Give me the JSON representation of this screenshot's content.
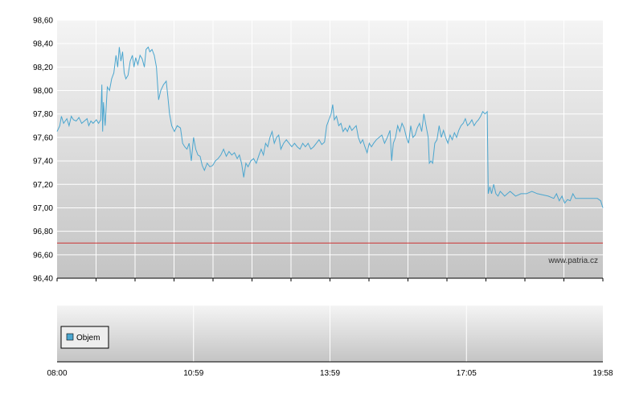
{
  "chart_data": [
    {
      "type": "line",
      "y_ticks": [
        96.4,
        96.6,
        96.8,
        97.0,
        97.2,
        97.4,
        97.6,
        97.8,
        98.0,
        98.2,
        98.4,
        98.6
      ],
      "y_tick_labels": [
        "96,40",
        "96,60",
        "96,80",
        "97,00",
        "97,20",
        "97,40",
        "97,60",
        "97,80",
        "98,00",
        "98,20",
        "98,40",
        "98,60"
      ],
      "ylim": [
        96.4,
        98.6
      ],
      "xlim": [
        0,
        100
      ],
      "grid": true,
      "reference_line": {
        "value": 96.7,
        "color": "#cc3333"
      },
      "watermark": "www.patria.cz",
      "series": [
        {
          "color": "#4ba6cf",
          "points": [
            [
              0.0,
              97.65
            ],
            [
              0.5,
              97.7
            ],
            [
              0.8,
              97.78
            ],
            [
              1.2,
              97.72
            ],
            [
              1.8,
              97.76
            ],
            [
              2.2,
              97.7
            ],
            [
              2.6,
              97.78
            ],
            [
              3.0,
              97.75
            ],
            [
              3.5,
              97.74
            ],
            [
              4.0,
              97.77
            ],
            [
              4.5,
              97.72
            ],
            [
              5.0,
              97.74
            ],
            [
              5.5,
              97.76
            ],
            [
              5.8,
              97.7
            ],
            [
              6.2,
              97.74
            ],
            [
              6.6,
              97.72
            ],
            [
              7.2,
              97.75
            ],
            [
              7.6,
              97.72
            ],
            [
              8.0,
              97.75
            ],
            [
              8.2,
              98.05
            ],
            [
              8.35,
              97.65
            ],
            [
              8.5,
              97.9
            ],
            [
              8.8,
              97.7
            ],
            [
              9.2,
              98.03
            ],
            [
              9.6,
              98.0
            ],
            [
              10.0,
              98.1
            ],
            [
              10.4,
              98.15
            ],
            [
              10.8,
              98.3
            ],
            [
              11.1,
              98.2
            ],
            [
              11.4,
              98.37
            ],
            [
              11.7,
              98.25
            ],
            [
              12.0,
              98.33
            ],
            [
              12.3,
              98.15
            ],
            [
              12.6,
              98.1
            ],
            [
              13.0,
              98.13
            ],
            [
              13.4,
              98.25
            ],
            [
              13.8,
              98.3
            ],
            [
              14.1,
              98.2
            ],
            [
              14.4,
              98.28
            ],
            [
              14.8,
              98.22
            ],
            [
              15.2,
              98.3
            ],
            [
              15.6,
              98.27
            ],
            [
              16.0,
              98.2
            ],
            [
              16.3,
              98.35
            ],
            [
              16.7,
              98.37
            ],
            [
              17.0,
              98.33
            ],
            [
              17.4,
              98.35
            ],
            [
              17.8,
              98.3
            ],
            [
              18.2,
              98.2
            ],
            [
              18.6,
              97.92
            ],
            [
              19.0,
              98.0
            ],
            [
              19.5,
              98.05
            ],
            [
              20.0,
              98.08
            ],
            [
              20.3,
              97.95
            ],
            [
              20.6,
              97.8
            ],
            [
              21.0,
              97.7
            ],
            [
              21.5,
              97.65
            ],
            [
              22.0,
              97.7
            ],
            [
              22.6,
              97.68
            ],
            [
              23.0,
              97.55
            ],
            [
              23.4,
              97.52
            ],
            [
              23.8,
              97.5
            ],
            [
              24.2,
              97.55
            ],
            [
              24.6,
              97.4
            ],
            [
              25.0,
              97.6
            ],
            [
              25.4,
              97.5
            ],
            [
              25.8,
              97.45
            ],
            [
              26.2,
              97.44
            ],
            [
              26.6,
              97.36
            ],
            [
              27.0,
              97.32
            ],
            [
              27.5,
              97.38
            ],
            [
              28.0,
              97.35
            ],
            [
              28.5,
              97.36
            ],
            [
              29.0,
              97.4
            ],
            [
              29.5,
              97.42
            ],
            [
              30.0,
              97.45
            ],
            [
              30.5,
              97.5
            ],
            [
              31.0,
              97.44
            ],
            [
              31.5,
              97.48
            ],
            [
              32.0,
              97.45
            ],
            [
              32.5,
              97.47
            ],
            [
              33.0,
              97.42
            ],
            [
              33.4,
              97.45
            ],
            [
              33.8,
              97.38
            ],
            [
              34.2,
              97.26
            ],
            [
              34.6,
              97.38
            ],
            [
              35.0,
              97.35
            ],
            [
              35.5,
              97.4
            ],
            [
              36.0,
              97.42
            ],
            [
              36.5,
              97.38
            ],
            [
              37.0,
              97.45
            ],
            [
              37.4,
              97.5
            ],
            [
              37.8,
              97.45
            ],
            [
              38.2,
              97.55
            ],
            [
              38.6,
              97.52
            ],
            [
              39.0,
              97.6
            ],
            [
              39.4,
              97.65
            ],
            [
              39.8,
              97.55
            ],
            [
              40.2,
              97.6
            ],
            [
              40.6,
              97.62
            ],
            [
              41.0,
              97.5
            ],
            [
              41.5,
              97.55
            ],
            [
              42.0,
              97.58
            ],
            [
              42.5,
              97.55
            ],
            [
              43.0,
              97.52
            ],
            [
              43.5,
              97.55
            ],
            [
              44.0,
              97.52
            ],
            [
              44.5,
              97.5
            ],
            [
              45.0,
              97.55
            ],
            [
              45.5,
              97.52
            ],
            [
              46.0,
              97.55
            ],
            [
              46.5,
              97.5
            ],
            [
              47.0,
              97.52
            ],
            [
              47.5,
              97.55
            ],
            [
              48.0,
              97.58
            ],
            [
              48.5,
              97.54
            ],
            [
              49.0,
              97.56
            ],
            [
              49.4,
              97.7
            ],
            [
              49.8,
              97.75
            ],
            [
              50.2,
              97.8
            ],
            [
              50.5,
              97.88
            ],
            [
              50.8,
              97.75
            ],
            [
              51.2,
              97.78
            ],
            [
              51.6,
              97.7
            ],
            [
              52.0,
              97.72
            ],
            [
              52.4,
              97.65
            ],
            [
              52.8,
              97.68
            ],
            [
              53.2,
              97.65
            ],
            [
              53.6,
              97.7
            ],
            [
              54.0,
              97.66
            ],
            [
              54.4,
              97.68
            ],
            [
              54.8,
              97.7
            ],
            [
              55.2,
              97.6
            ],
            [
              55.6,
              97.55
            ],
            [
              56.0,
              97.58
            ],
            [
              56.4,
              97.52
            ],
            [
              56.8,
              97.47
            ],
            [
              57.2,
              97.55
            ],
            [
              57.6,
              97.52
            ],
            [
              58.0,
              97.55
            ],
            [
              58.5,
              97.58
            ],
            [
              59.0,
              97.6
            ],
            [
              59.5,
              97.62
            ],
            [
              60.0,
              97.55
            ],
            [
              60.5,
              97.6
            ],
            [
              61.0,
              97.66
            ],
            [
              61.3,
              97.4
            ],
            [
              61.6,
              97.55
            ],
            [
              62.0,
              97.6
            ],
            [
              62.4,
              97.7
            ],
            [
              62.8,
              97.65
            ],
            [
              63.2,
              97.72
            ],
            [
              63.6,
              97.68
            ],
            [
              64.0,
              97.6
            ],
            [
              64.4,
              97.55
            ],
            [
              64.8,
              97.7
            ],
            [
              65.2,
              97.6
            ],
            [
              65.6,
              97.62
            ],
            [
              66.0,
              97.68
            ],
            [
              66.4,
              97.72
            ],
            [
              66.8,
              97.65
            ],
            [
              67.2,
              97.8
            ],
            [
              67.6,
              97.7
            ],
            [
              68.0,
              97.6
            ],
            [
              68.2,
              97.38
            ],
            [
              68.5,
              97.4
            ],
            [
              68.8,
              97.38
            ],
            [
              69.2,
              97.55
            ],
            [
              69.6,
              97.58
            ],
            [
              70.0,
              97.7
            ],
            [
              70.4,
              97.6
            ],
            [
              70.8,
              97.66
            ],
            [
              71.2,
              97.6
            ],
            [
              71.6,
              97.55
            ],
            [
              72.0,
              97.62
            ],
            [
              72.4,
              97.58
            ],
            [
              72.8,
              97.64
            ],
            [
              73.2,
              97.6
            ],
            [
              73.6,
              97.66
            ],
            [
              74.0,
              97.7
            ],
            [
              74.4,
              97.72
            ],
            [
              74.8,
              97.76
            ],
            [
              75.2,
              97.7
            ],
            [
              75.6,
              97.72
            ],
            [
              76.0,
              97.75
            ],
            [
              76.4,
              97.7
            ],
            [
              76.8,
              97.73
            ],
            [
              77.2,
              97.75
            ],
            [
              77.6,
              97.78
            ],
            [
              78.0,
              97.82
            ],
            [
              78.4,
              97.8
            ],
            [
              78.8,
              97.82
            ],
            [
              79.0,
              97.12
            ],
            [
              79.3,
              97.18
            ],
            [
              79.6,
              97.12
            ],
            [
              80.0,
              97.2
            ],
            [
              80.4,
              97.12
            ],
            [
              80.8,
              97.1
            ],
            [
              81.2,
              97.14
            ],
            [
              81.6,
              97.12
            ],
            [
              82.0,
              97.1
            ],
            [
              82.5,
              97.12
            ],
            [
              83.0,
              97.14
            ],
            [
              84.0,
              97.1
            ],
            [
              85.0,
              97.12
            ],
            [
              86.0,
              97.12
            ],
            [
              87.0,
              97.14
            ],
            [
              88.0,
              97.12
            ],
            [
              89.0,
              97.11
            ],
            [
              90.0,
              97.1
            ],
            [
              91.0,
              97.08
            ],
            [
              91.5,
              97.12
            ],
            [
              92.0,
              97.06
            ],
            [
              92.5,
              97.1
            ],
            [
              93.0,
              97.04
            ],
            [
              93.5,
              97.07
            ],
            [
              94.0,
              97.06
            ],
            [
              94.5,
              97.12
            ],
            [
              95.0,
              97.08
            ],
            [
              96.0,
              97.08
            ],
            [
              97.0,
              97.08
            ],
            [
              98.0,
              97.08
            ],
            [
              99.0,
              97.08
            ],
            [
              99.6,
              97.06
            ],
            [
              100.0,
              97.0
            ]
          ]
        }
      ]
    },
    {
      "type": "bar",
      "x_tick_labels": [
        "08:00",
        "10:59",
        "13:59",
        "17:05",
        "19:58"
      ],
      "legend": {
        "label": "Objem",
        "placement": "top-left",
        "color": "#4ba6cf"
      }
    }
  ]
}
